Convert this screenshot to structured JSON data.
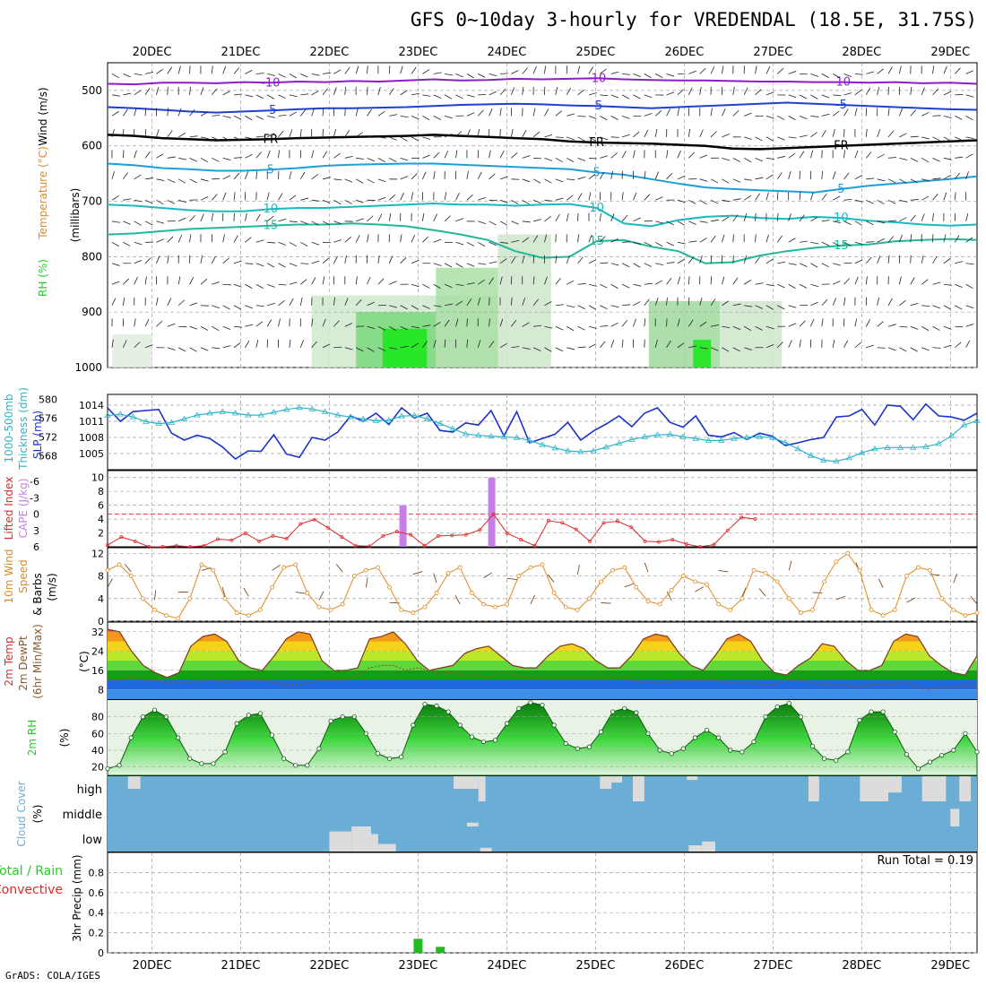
{
  "title": "GFS 0~10day 3-hourly for VREDENDAL (18.5E, 31.75S)",
  "footer": "GrADS: COLA/IGES",
  "colors": {
    "panel_border": "#000000",
    "grid": "#a0a0a0",
    "rh_green": "#1fd11f",
    "temp_orange": "#e08a1e",
    "wind_blue": "#1f3fd0",
    "cape_purple": "#c77fe8",
    "lifted_red": "#e02828",
    "slp_blue": "#1a33c8",
    "thickness_cyan": "#2bb5c8",
    "cloud_blue": "#6aaed6",
    "cloud_gray": "#dcdcdc",
    "precip_green": "#22bb22",
    "dewpt_brown": "#8b5a2b"
  },
  "chart_data": [
    {
      "type": "heatmap",
      "id": "upper",
      "label_lines": [
        {
          "text": "Wind (m/s)",
          "color": "#000000"
        },
        {
          "text": "Temperature (°C)",
          "color": "#e08a1e"
        },
        {
          "text": "RH (%)",
          "color": "#1fd11f"
        }
      ],
      "ylabel": "(millibars)",
      "yticks": [
        500,
        600,
        700,
        800,
        900,
        1000
      ],
      "ylim": [
        1000,
        450
      ],
      "contours": [
        {
          "label": "-10",
          "color": "#8c1fc8",
          "values": [
            488,
            489,
            486,
            486,
            487,
            485,
            486,
            484,
            485,
            483,
            484,
            482,
            480,
            482,
            481,
            479,
            480,
            479,
            478,
            480,
            481,
            482,
            482,
            483,
            484,
            484,
            485,
            485,
            486,
            485,
            487,
            486,
            488
          ]
        },
        {
          "label": "-5",
          "color": "#1f3fd0",
          "values": [
            530,
            532,
            535,
            538,
            540,
            538,
            536,
            534,
            532,
            532,
            531,
            530,
            528,
            526,
            525,
            524,
            525,
            527,
            528,
            530,
            532,
            530,
            528,
            526,
            524,
            522,
            524,
            526,
            528,
            530,
            532,
            534,
            535
          ]
        },
        {
          "label": "FR",
          "color": "#000000",
          "values": [
            580,
            582,
            586,
            588,
            590,
            589,
            588,
            586,
            585,
            584,
            583,
            582,
            580,
            582,
            584,
            586,
            588,
            592,
            594,
            595,
            596,
            598,
            600,
            605,
            606,
            604,
            602,
            600,
            598,
            596,
            594,
            592,
            590
          ]
        },
        {
          "label": "5",
          "color": "#1e9ed8",
          "values": [
            632,
            635,
            640,
            642,
            645,
            645,
            643,
            640,
            636,
            634,
            633,
            632,
            632,
            634,
            636,
            638,
            640,
            642,
            648,
            652,
            660,
            668,
            675,
            678,
            680,
            682,
            684,
            678,
            672,
            668,
            664,
            660,
            655
          ]
        },
        {
          "label": "10",
          "color": "#1ab8c0",
          "values": [
            706,
            708,
            712,
            716,
            718,
            718,
            714,
            712,
            712,
            710,
            708,
            706,
            704,
            706,
            706,
            708,
            706,
            705,
            712,
            740,
            745,
            734,
            728,
            726,
            730,
            732,
            728,
            730,
            735,
            738,
            742,
            744,
            742
          ]
        },
        {
          "label": "15",
          "color": "#1fb89a",
          "values": [
            760,
            758,
            754,
            750,
            748,
            746,
            744,
            742,
            742,
            740,
            742,
            745,
            752,
            760,
            770,
            790,
            802,
            800,
            772,
            770,
            782,
            790,
            812,
            810,
            798,
            790,
            784,
            780,
            778,
            772,
            770,
            768,
            770
          ]
        }
      ]
    },
    {
      "type": "line",
      "id": "slp",
      "label_lines": [
        {
          "text": "1000-500mb",
          "color": "#2bb5c8"
        },
        {
          "text": "Thickness (dm)",
          "color": "#2bb5c8"
        },
        {
          "text": "SLP (mb)",
          "color": "#1a33c8"
        }
      ],
      "left_ticks": [
        568,
        572,
        576,
        580
      ],
      "left_lim": [
        565,
        581
      ],
      "right_ticks": [
        1005,
        1008,
        1011,
        1014
      ],
      "right_lim": [
        1002,
        1016
      ],
      "series": [
        {
          "name": "SLP",
          "axis": "right",
          "color": "#1a33c8",
          "values": [
            1013.5,
            1011.0,
            1012.8,
            1013.0,
            1013.2,
            1008.8,
            1007.5,
            1008.4,
            1007.8,
            1006.2,
            1004.0,
            1005.5,
            1005.4,
            1008.5,
            1004.9,
            1004.3,
            1008.0,
            1007.5,
            1009.0,
            1012.0,
            1011.0,
            1012.5,
            1010.4,
            1013.5,
            1011.6,
            1012.5,
            1009.3,
            1009.0,
            1010.7,
            1010.3,
            1013.0,
            1008.3,
            1012.8,
            1007.0,
            1007.8,
            1008.6,
            1010.8,
            1007.5,
            1009.2,
            1010.5,
            1012.0,
            1010.0,
            1012.5,
            1013.5,
            1010.8,
            1009.9,
            1012.0,
            1008.4,
            1008.1,
            1008.9,
            1007.6,
            1008.8,
            1008.2,
            1006.5,
            1007.0,
            1007.6,
            1008.0,
            1011.8,
            1012.0,
            1013.2,
            1010.3,
            1014.0,
            1013.8,
            1011.3,
            1014.2,
            1012.0,
            1011.8,
            1011.2,
            1012.5
          ]
        },
        {
          "name": "Thickness",
          "axis": "left",
          "color": "#2bb5c8",
          "values": [
            576.5,
            576.8,
            576.2,
            575.2,
            574.8,
            575.0,
            575.8,
            576.6,
            577.0,
            577.3,
            577.0,
            576.6,
            576.6,
            577.2,
            577.8,
            578.2,
            577.9,
            577.3,
            576.6,
            576.2,
            575.8,
            575.4,
            575.5,
            576.4,
            576.5,
            575.8,
            574.8,
            573.7,
            572.6,
            572.3,
            572.1,
            572.0,
            571.8,
            571.2,
            570.3,
            569.6,
            569.0,
            568.8,
            569.0,
            569.8,
            570.6,
            571.4,
            572.0,
            572.4,
            572.5,
            572.0,
            571.6,
            571.2,
            571.2,
            571.6,
            571.9,
            572.0,
            571.8,
            570.8,
            569.4,
            568.0,
            567.0,
            566.8,
            567.5,
            568.6,
            569.4,
            569.7,
            569.7,
            569.7,
            569.9,
            570.5,
            572.2,
            574.5,
            575.4
          ]
        }
      ]
    },
    {
      "type": "bar",
      "id": "cape",
      "label_lines": [
        {
          "text": "Lifted Index",
          "color": "#e02828"
        },
        {
          "text": "CAPE (J/kg)",
          "color": "#c77fe8"
        }
      ],
      "left_ticks": [
        "-6",
        "-3",
        "0",
        "3",
        "6"
      ],
      "right_ticks": [
        "2",
        "4",
        "6",
        "8",
        "10"
      ],
      "cape_lim": [
        0,
        11
      ],
      "li_lim": [
        6,
        -8
      ],
      "cape_bars": [
        {
          "x": 3.83,
          "value": 6
        },
        {
          "x": 4.83,
          "value": 10
        }
      ],
      "lifted_index": [
        5.7,
        4.2,
        5.0,
        7.2,
        6.0,
        5.8,
        6.5,
        5.8,
        4.6,
        4.8,
        3.5,
        5.0,
        4.0,
        4.5,
        1.8,
        1.0,
        2.5,
        4.2,
        5.8,
        5.9,
        4.0,
        3.2,
        3.8,
        5.8,
        4.0,
        3.9,
        3.8,
        2.9,
        0.0,
        3.5,
        4.7,
        5.8,
        1.2,
        1.6,
        2.8,
        5.0,
        1.6,
        1.3,
        2.4,
        5.0,
        5.1,
        4.7,
        5.5,
        6.5,
        5.6,
        3.0,
        0.6,
        0.9
      ]
    },
    {
      "type": "line",
      "id": "wind10m",
      "label_lines": [
        {
          "text": "10m Wind",
          "color": "#e08a1e"
        },
        {
          "text": "Speed",
          "color": "#e08a1e"
        },
        {
          "text": "& Barbs",
          "color": "#000000"
        },
        {
          "text": "(m/s)",
          "color": "#000000"
        }
      ],
      "yticks": [
        0,
        4,
        8,
        12
      ],
      "ylim": [
        0,
        13
      ],
      "values": [
        9.0,
        10.0,
        8.0,
        4.0,
        2.0,
        1.0,
        0.5,
        4.0,
        10.0,
        9.0,
        4.0,
        1.5,
        1.0,
        2.0,
        6.0,
        9.5,
        10.0,
        5.0,
        2.5,
        2.0,
        3.0,
        8.0,
        9.0,
        9.5,
        6.0,
        2.0,
        1.5,
        2.5,
        5.0,
        8.5,
        9.5,
        5.0,
        3.0,
        2.5,
        3.0,
        8.0,
        9.5,
        10.0,
        5.0,
        2.5,
        2.0,
        4.0,
        7.0,
        9.0,
        9.5,
        6.0,
        3.5,
        3.0,
        5.5,
        8.0,
        7.0,
        6.5,
        3.0,
        2.0,
        4.0,
        9.0,
        8.5,
        7.0,
        4.0,
        1.5,
        2.0,
        7.0,
        10.5,
        12.0,
        9.0,
        2.0,
        1.0,
        2.0,
        8.0,
        9.5,
        9.0,
        4.0,
        2.0,
        1.0,
        1.5
      ]
    },
    {
      "type": "area",
      "id": "temp",
      "label_lines": [
        {
          "text": "2m Temp",
          "color": "#e02828"
        },
        {
          "text": "2m DewPt",
          "color": "#8b5a2b"
        },
        {
          "text": "(6hr Min/Max)",
          "color": "#8b5a2b"
        },
        {
          "text": "(°C)",
          "color": "#000000"
        }
      ],
      "yticks": [
        8,
        16,
        24,
        32
      ],
      "ylim": [
        4,
        36
      ],
      "bands": [
        {
          "from": 4,
          "to": 8,
          "color": "#3a8eea"
        },
        {
          "from": 8,
          "to": 12,
          "color": "#1f6ae0"
        },
        {
          "from": 12,
          "to": 16,
          "color": "#12a012"
        },
        {
          "from": 16,
          "to": 20,
          "color": "#5fd83a"
        },
        {
          "from": 20,
          "to": 24,
          "color": "#bde82a"
        },
        {
          "from": 24,
          "to": 28,
          "color": "#f5d21a"
        },
        {
          "from": 28,
          "to": 32,
          "color": "#f39a1a"
        },
        {
          "from": 32,
          "to": 40,
          "color": "#e8551a"
        }
      ],
      "temperature": [
        33,
        32,
        24,
        18,
        15,
        13,
        15,
        26,
        30,
        31,
        28,
        20,
        17,
        16,
        22,
        29,
        32,
        31,
        20,
        16,
        16,
        17,
        29,
        30,
        32,
        27,
        20,
        16,
        17,
        18,
        23,
        25,
        26,
        22,
        18,
        17,
        17,
        22,
        26,
        27,
        25,
        20,
        17,
        17,
        22,
        29,
        31,
        30,
        23,
        18,
        16,
        22,
        29,
        31,
        28,
        20,
        15,
        14,
        18,
        21,
        27,
        26,
        20,
        16,
        16,
        18,
        28,
        31,
        30,
        22,
        18,
        15,
        14,
        22
      ],
      "dewpoint": [
        12,
        12,
        13,
        12,
        12,
        11,
        11,
        11,
        12,
        12,
        11,
        12,
        12,
        12,
        11,
        10,
        10,
        11,
        12,
        12,
        12,
        14,
        17,
        18,
        18,
        16,
        17,
        16,
        15,
        15,
        14,
        14,
        13,
        15,
        14,
        13,
        13,
        13,
        13,
        13,
        13,
        13,
        13,
        13,
        12,
        11,
        11,
        11,
        12,
        12,
        12,
        12,
        11,
        11,
        11,
        10,
        10,
        12,
        12,
        11,
        10,
        10,
        10,
        9,
        10,
        10,
        10,
        11,
        9,
        8,
        9,
        9,
        10,
        9
      ]
    },
    {
      "type": "area",
      "id": "rh2m",
      "label_lines": [
        {
          "text": "2m RH",
          "color": "#1fd11f"
        },
        {
          "text": "(%)",
          "color": "#000000"
        }
      ],
      "yticks": [
        20,
        40,
        60,
        80
      ],
      "ylim": [
        10,
        100
      ],
      "values": [
        18,
        22,
        55,
        80,
        88,
        80,
        55,
        30,
        24,
        24,
        38,
        72,
        82,
        84,
        58,
        30,
        22,
        22,
        42,
        75,
        80,
        80,
        60,
        36,
        30,
        32,
        70,
        95,
        93,
        86,
        70,
        56,
        50,
        52,
        72,
        90,
        97,
        94,
        70,
        48,
        42,
        44,
        62,
        86,
        90,
        85,
        60,
        40,
        36,
        42,
        55,
        64,
        55,
        40,
        38,
        50,
        80,
        92,
        96,
        80,
        45,
        30,
        28,
        38,
        76,
        86,
        86,
        62,
        35,
        18,
        26,
        34,
        40,
        60,
        38
      ]
    },
    {
      "type": "heatmap",
      "id": "cloud",
      "label_lines": [
        {
          "text": "Cloud Cover",
          "color": "#6aaed6"
        },
        {
          "text": "(%)",
          "color": "#000000"
        }
      ],
      "level_labels": [
        "high",
        "middle",
        "low"
      ],
      "cells": [
        {
          "day_from": 0.73,
          "day_to": 0.87,
          "level": "high",
          "fill": 0.5
        },
        {
          "day_from": 4.68,
          "day_to": 4.76,
          "level": "high",
          "fill": 1.0
        },
        {
          "day_from": 4.4,
          "day_to": 4.68,
          "level": "high",
          "fill": 0.5
        },
        {
          "day_from": 6.05,
          "day_to": 6.18,
          "level": "high",
          "fill": 0.5
        },
        {
          "day_from": 6.18,
          "day_to": 6.3,
          "level": "high",
          "fill": 0.25
        },
        {
          "day_from": 6.42,
          "day_to": 6.55,
          "level": "high",
          "fill": 1.0
        },
        {
          "day_from": 7.03,
          "day_to": 7.15,
          "level": "high",
          "fill": 0.15
        },
        {
          "day_from": 8.4,
          "day_to": 8.52,
          "level": "high",
          "fill": 1.0
        },
        {
          "day_from": 8.98,
          "day_to": 9.3,
          "level": "high",
          "fill": 1.0
        },
        {
          "day_from": 9.3,
          "day_to": 9.45,
          "level": "high",
          "fill": 0.65
        },
        {
          "day_from": 9.68,
          "day_to": 9.95,
          "level": "high",
          "fill": 1.0
        },
        {
          "day_from": 10.1,
          "day_to": 10.23,
          "level": "high",
          "fill": 1.0
        },
        {
          "day_from": 10.0,
          "day_to": 10.1,
          "level": "middle",
          "fill": 0.7
        },
        {
          "day_from": 4.55,
          "day_to": 4.68,
          "level": "middle",
          "fill": 0.15
        },
        {
          "day_from": 3.25,
          "day_to": 3.47,
          "level": "low",
          "fill": 1.0
        },
        {
          "day_from": 3.0,
          "day_to": 3.25,
          "level": "low",
          "fill": 0.8
        },
        {
          "day_from": 3.47,
          "day_to": 3.55,
          "level": "low",
          "fill": 0.7
        },
        {
          "day_from": 3.55,
          "day_to": 3.75,
          "level": "low",
          "fill": 0.3
        },
        {
          "day_from": 4.7,
          "day_to": 4.83,
          "level": "low",
          "fill": 0.15
        },
        {
          "day_from": 7.05,
          "day_to": 7.2,
          "level": "low",
          "fill": 0.25
        },
        {
          "day_from": 7.2,
          "day_to": 7.35,
          "level": "low",
          "fill": 0.4
        }
      ]
    },
    {
      "type": "bar",
      "id": "precip",
      "label_lines": [
        {
          "text": "Total / Rain",
          "color": "#1fd11f"
        },
        {
          "text": "Convective",
          "color": "#e02828"
        },
        {
          "text": "3hr Precip (mm)",
          "color": "#000000"
        }
      ],
      "run_total": "Run Total = 0.19",
      "yticks": [
        "0",
        "0.2",
        "0.4",
        "0.6",
        "0.8"
      ],
      "ylim": [
        0,
        1.0
      ],
      "bars": [
        {
          "x": 4.0,
          "value": 0.14
        },
        {
          "x": 4.25,
          "value": 0.06
        }
      ]
    }
  ],
  "x_axis": {
    "labels": [
      "20DEC",
      "21DEC",
      "22DEC",
      "23DEC",
      "24DEC",
      "25DEC",
      "26DEC",
      "27DEC",
      "28DEC",
      "29DEC"
    ],
    "day_range": [
      0.5,
      10.3
    ]
  }
}
